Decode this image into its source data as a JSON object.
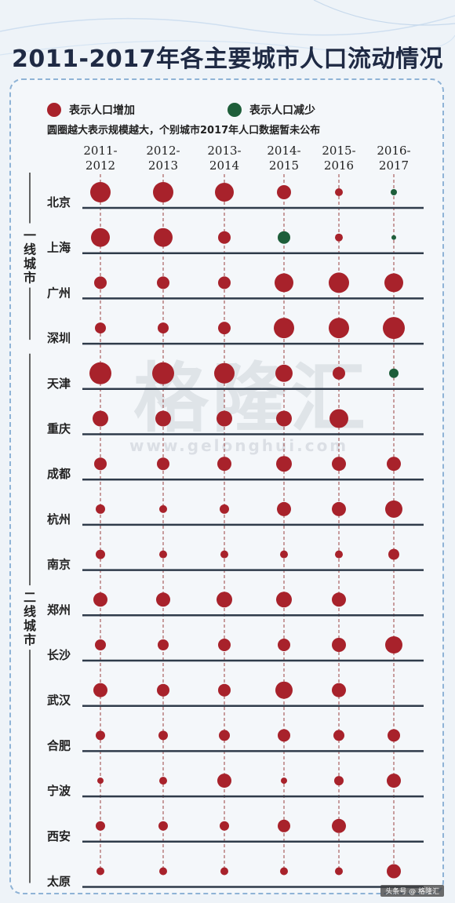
{
  "header": {
    "title": "2011-2017年各主要城市人口流动情况"
  },
  "legend": {
    "increase_label": "表示人口增加",
    "decrease_label": "表示人口减少",
    "note": "圆圈越大表示规模越大，个别城市2017年人口数据暂未公布"
  },
  "watermark": {
    "text": "格隆汇",
    "url": "www.gelonghui.com"
  },
  "corner_mark": "头条号 @ 格隆汇",
  "colors": {
    "increase": "#a8222b",
    "decrease": "#1e5e3a",
    "axis_line": "#2f3b4a",
    "dashed_line": "#9a4040",
    "group_bracket": "#333333"
  },
  "chart_data": {
    "type": "scatter",
    "periods": [
      "2011-2012",
      "2012-2013",
      "2013-2014",
      "2014-2015",
      "2015-2016",
      "2016-2017"
    ],
    "groups": [
      {
        "label": "一线城市",
        "cities": [
          "北京",
          "上海",
          "广州",
          "深圳"
        ]
      },
      {
        "label": "二线城市",
        "cities": [
          "天津",
          "重庆",
          "成都",
          "杭州",
          "南京",
          "郑州",
          "长沙",
          "武汉",
          "合肥",
          "宁波",
          "西安",
          "太原"
        ]
      }
    ],
    "cities": [
      {
        "name": "北京",
        "sizes": [
          13,
          13,
          12,
          9,
          5,
          4
        ],
        "dir": [
          "+",
          "+",
          "+",
          "+",
          "+",
          "-"
        ]
      },
      {
        "name": "上海",
        "sizes": [
          12,
          12,
          8,
          8,
          5,
          3
        ],
        "dir": [
          "+",
          "+",
          "+",
          "-",
          "+",
          "-"
        ]
      },
      {
        "name": "广州",
        "sizes": [
          8,
          8,
          8,
          12,
          13,
          12
        ],
        "dir": [
          "+",
          "+",
          "+",
          "+",
          "+",
          "+"
        ]
      },
      {
        "name": "深圳",
        "sizes": [
          7,
          7,
          8,
          13,
          13,
          14
        ],
        "dir": [
          "+",
          "+",
          "+",
          "+",
          "+",
          "+"
        ]
      },
      {
        "name": "天津",
        "sizes": [
          14,
          14,
          13,
          11,
          8,
          6
        ],
        "dir": [
          "+",
          "+",
          "+",
          "+",
          "+",
          "-"
        ]
      },
      {
        "name": "重庆",
        "sizes": [
          10,
          10,
          10,
          10,
          12,
          null
        ],
        "dir": [
          "+",
          "+",
          "+",
          "+",
          "+",
          ""
        ]
      },
      {
        "name": "成都",
        "sizes": [
          8,
          8,
          9,
          10,
          9,
          9
        ],
        "dir": [
          "+",
          "+",
          "+",
          "+",
          "+",
          "+"
        ]
      },
      {
        "name": "杭州",
        "sizes": [
          6,
          5,
          6,
          9,
          9,
          11
        ],
        "dir": [
          "+",
          "+",
          "+",
          "+",
          "+",
          "+"
        ]
      },
      {
        "name": "南京",
        "sizes": [
          6,
          5,
          5,
          5,
          5,
          7
        ],
        "dir": [
          "+",
          "+",
          "+",
          "+",
          "+",
          "+"
        ]
      },
      {
        "name": "郑州",
        "sizes": [
          9,
          9,
          10,
          10,
          9,
          null
        ],
        "dir": [
          "+",
          "+",
          "+",
          "+",
          "+",
          ""
        ]
      },
      {
        "name": "长沙",
        "sizes": [
          7,
          7,
          8,
          8,
          9,
          11
        ],
        "dir": [
          "+",
          "+",
          "+",
          "+",
          "+",
          "+"
        ]
      },
      {
        "name": "武汉",
        "sizes": [
          9,
          8,
          8,
          11,
          9,
          null
        ],
        "dir": [
          "+",
          "+",
          "+",
          "+",
          "+",
          ""
        ]
      },
      {
        "name": "合肥",
        "sizes": [
          6,
          6,
          7,
          8,
          7,
          8
        ],
        "dir": [
          "+",
          "+",
          "+",
          "+",
          "+",
          "+"
        ]
      },
      {
        "name": "宁波",
        "sizes": [
          4,
          5,
          9,
          4,
          6,
          9
        ],
        "dir": [
          "+",
          "+",
          "+",
          "+",
          "+",
          "+"
        ]
      },
      {
        "name": "西安",
        "sizes": [
          6,
          6,
          6,
          8,
          9,
          null
        ],
        "dir": [
          "+",
          "+",
          "+",
          "+",
          "+",
          ""
        ]
      },
      {
        "name": "太原",
        "sizes": [
          5,
          5,
          5,
          5,
          5,
          9
        ],
        "dir": [
          "+",
          "+",
          "+",
          "+",
          "+",
          "+"
        ]
      }
    ]
  }
}
